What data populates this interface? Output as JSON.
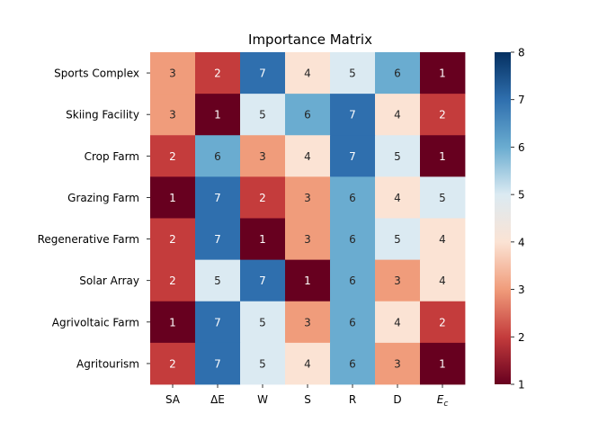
{
  "chart_data": {
    "type": "heatmap",
    "title": "Importance Matrix",
    "rows": [
      "Sports Complex",
      "Skiing Facility",
      "Crop Farm",
      "Grazing Farm",
      "Regenerative Farm",
      "Solar Array",
      "Agrivoltaic Farm",
      "Agritourism"
    ],
    "columns": [
      "SA",
      "ΔE",
      "W",
      "S",
      "R",
      "D",
      "E"
    ],
    "columns_subscript": [
      "",
      "",
      "",
      "",
      "",
      "",
      "c"
    ],
    "values": [
      [
        3,
        2,
        7,
        4,
        5,
        6,
        1
      ],
      [
        3,
        1,
        5,
        6,
        7,
        4,
        2
      ],
      [
        2,
        6,
        3,
        4,
        7,
        5,
        1
      ],
      [
        1,
        7,
        2,
        3,
        6,
        4,
        5
      ],
      [
        2,
        7,
        1,
        3,
        6,
        5,
        4
      ],
      [
        2,
        5,
        7,
        1,
        6,
        3,
        4
      ],
      [
        1,
        7,
        5,
        3,
        6,
        4,
        2
      ],
      [
        2,
        7,
        5,
        4,
        6,
        3,
        1
      ]
    ],
    "colorbar": {
      "min": 1,
      "max": 8,
      "ticks": [
        1,
        2,
        3,
        4,
        5,
        6,
        7,
        8
      ],
      "colormap": "RdBu"
    },
    "colors": {
      "1": "#67001f",
      "2": "#c43c3c",
      "3": "#f09c7b",
      "4": "#fbe3d4",
      "5": "#dbeaf2",
      "6": "#6aacd0",
      "7": "#2f6fae",
      "8": "#053061"
    },
    "annotate": true,
    "grid": false
  }
}
